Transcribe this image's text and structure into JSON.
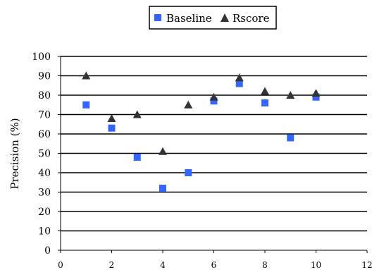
{
  "chart_data": {
    "type": "scatter",
    "title": "",
    "xlabel": "",
    "ylabel": "Precision (%)",
    "xlim": [
      0,
      12
    ],
    "ylim": [
      0,
      100
    ],
    "xticks": [
      0,
      2,
      4,
      6,
      8,
      10,
      12
    ],
    "yticks": [
      0,
      10,
      20,
      30,
      40,
      50,
      60,
      70,
      80,
      90,
      100
    ],
    "grid": "horizontal",
    "legend_position": "top",
    "series": [
      {
        "name": "Baseline",
        "marker": "square",
        "color": "#3366ff",
        "x": [
          1,
          2,
          3,
          4,
          5,
          6,
          7,
          8,
          9,
          10
        ],
        "y": [
          75,
          63,
          48,
          32,
          40,
          77,
          86,
          76,
          58,
          79
        ]
      },
      {
        "name": "Rscore",
        "marker": "triangle",
        "color": "#333333",
        "x": [
          1,
          2,
          3,
          4,
          5,
          6,
          7,
          8,
          9,
          10
        ],
        "y": [
          90,
          68,
          70,
          51,
          75,
          79,
          89,
          82,
          80,
          81
        ]
      }
    ]
  }
}
